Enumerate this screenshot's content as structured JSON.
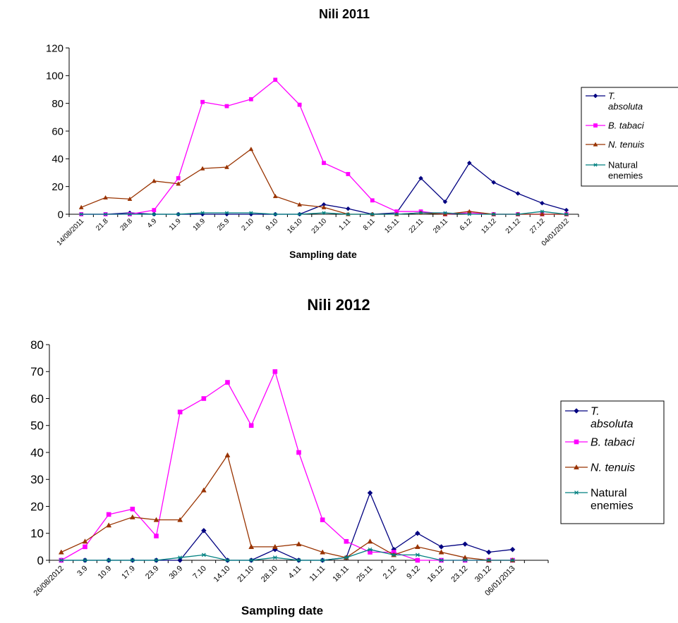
{
  "chart_data": [
    {
      "type": "line",
      "title": "Nili 2011",
      "xlabel": "Sampling date",
      "ylabel": "",
      "ylim": [
        0,
        120
      ],
      "yticks": [
        0,
        20,
        40,
        60,
        80,
        100,
        120
      ],
      "categories": [
        "14/08/2011",
        "21.8",
        "28.8",
        "4.9",
        "11.9",
        "18.9",
        "25.9",
        "2.10",
        "9.10",
        "16.10",
        "23.10",
        "1.11",
        "8.11",
        "15.11",
        "22.11",
        "29.11",
        "6.12",
        "13.12",
        "21.12",
        "27.12",
        "04/01/2012"
      ],
      "legend_placement": "right",
      "series": [
        {
          "name": "T. absoluta",
          "legend_lines": [
            "T.",
            "absoluta"
          ],
          "color": "#000080",
          "marker": "diamond",
          "values": [
            0,
            0,
            1,
            0,
            0,
            0,
            0,
            0,
            0,
            0,
            7,
            4,
            0,
            1,
            26,
            9,
            37,
            23,
            15,
            8,
            3
          ]
        },
        {
          "name": "B. tabaci",
          "legend_lines": [
            "B. tabaci"
          ],
          "color": "#ff00ff",
          "marker": "square",
          "values": [
            0,
            0,
            0,
            3,
            26,
            81,
            78,
            83,
            97,
            79,
            37,
            29,
            10,
            2,
            2,
            0,
            1,
            0,
            0,
            0,
            0
          ]
        },
        {
          "name": "N. tenuis",
          "legend_lines": [
            "N. tenuis"
          ],
          "color": "#993300",
          "marker": "triangle",
          "values": [
            5,
            12,
            11,
            24,
            22,
            33,
            34,
            47,
            13,
            7,
            5,
            0,
            0,
            0,
            1,
            0,
            2,
            0,
            0,
            0,
            0
          ]
        },
        {
          "name": "Natural enemies",
          "legend_lines": [
            "Natural",
            "enemies"
          ],
          "color": "#008080",
          "marker": "star",
          "values": [
            0,
            0,
            0,
            0,
            0,
            1,
            1,
            1,
            0,
            0,
            1,
            0,
            0,
            0,
            1,
            1,
            0,
            0,
            0,
            2,
            0
          ]
        }
      ]
    },
    {
      "type": "line",
      "title": "Nili 2012",
      "xlabel": "Sampling date",
      "ylabel": "",
      "ylim": [
        0,
        80
      ],
      "yticks": [
        0,
        10,
        20,
        30,
        40,
        50,
        60,
        70,
        80
      ],
      "categories": [
        "26/08/2012",
        "3.9",
        "10.9",
        "17.9",
        "23.9",
        "30.9",
        "7.10",
        "14.10",
        "21.10",
        "28.10",
        "4.11",
        "11.11",
        "18.11",
        "25.11",
        "2.12",
        "9.12",
        "16.12",
        "23.12",
        "30.12",
        "06/01/2013"
      ],
      "legend_placement": "right",
      "series": [
        {
          "name": "T. absoluta",
          "legend_lines": [
            "T.",
            "absoluta"
          ],
          "color": "#000080",
          "marker": "diamond",
          "values": [
            0,
            0,
            0,
            0,
            0,
            0,
            11,
            0,
            0,
            4,
            0,
            0,
            1,
            25,
            4,
            10,
            5,
            6,
            3,
            4
          ]
        },
        {
          "name": "B. tabaci",
          "legend_lines": [
            "B. tabaci"
          ],
          "color": "#ff00ff",
          "marker": "square",
          "values": [
            0,
            5,
            17,
            19,
            9,
            55,
            60,
            66,
            50,
            70,
            40,
            15,
            7,
            3,
            3,
            0,
            0,
            0,
            0,
            0
          ]
        },
        {
          "name": "N. tenuis",
          "legend_lines": [
            "N.  tenuis"
          ],
          "color": "#993300",
          "marker": "triangle",
          "values": [
            3,
            7,
            13,
            16,
            15,
            15,
            26,
            39,
            5,
            5,
            6,
            3,
            1,
            7,
            2,
            5,
            3,
            1,
            0,
            0
          ]
        },
        {
          "name": "Natural enemies",
          "legend_lines": [
            "Natural",
            "enemies"
          ],
          "color": "#008080",
          "marker": "star",
          "values": [
            0,
            0,
            0,
            0,
            0,
            1,
            2,
            0,
            0,
            1,
            0,
            0,
            1,
            4,
            2,
            2,
            0,
            0,
            0,
            0
          ]
        }
      ]
    }
  ]
}
